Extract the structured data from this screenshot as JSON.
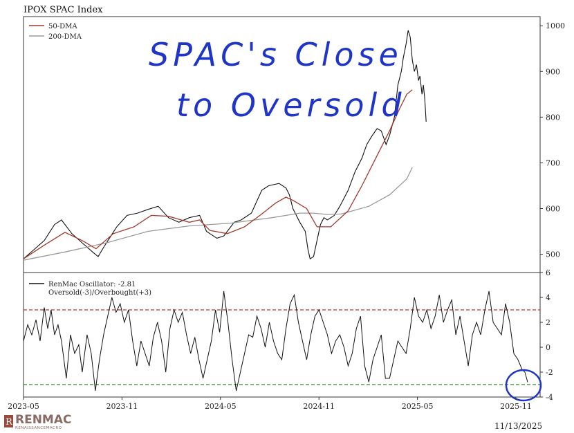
{
  "chart_data": [
    {
      "type": "line",
      "title": "IPOX SPAC Index",
      "ylim": [
        460,
        1020
      ],
      "yticks": [
        500,
        600,
        700,
        800,
        900,
        1000
      ],
      "legend_position": "top-left",
      "annotation": [
        "SPAC's Close",
        "to Oversold"
      ],
      "series": [
        {
          "name": "50-DMA",
          "color": "#a33a2c",
          "points": [
            [
              0,
              490
            ],
            [
              30,
              520
            ],
            [
              60,
              548
            ],
            [
              85,
              530
            ],
            [
              105,
              512
            ],
            [
              130,
              545
            ],
            [
              160,
              560
            ],
            [
              185,
              585
            ],
            [
              210,
              583
            ],
            [
              240,
              570
            ],
            [
              255,
              575
            ],
            [
              270,
              552
            ],
            [
              295,
              545
            ],
            [
              320,
              560
            ],
            [
              345,
              588
            ],
            [
              365,
              612
            ],
            [
              380,
              625
            ],
            [
              390,
              618
            ],
            [
              410,
              600
            ],
            [
              425,
              560
            ],
            [
              445,
              560
            ],
            [
              470,
              595
            ],
            [
              490,
              650
            ],
            [
              510,
              710
            ],
            [
              530,
              770
            ],
            [
              545,
              820
            ],
            [
              555,
              850
            ],
            [
              563,
              860
            ]
          ]
        },
        {
          "name": "200-DMA",
          "color": "#9a9a9a",
          "points": [
            [
              0,
              487
            ],
            [
              60,
              505
            ],
            [
              120,
              525
            ],
            [
              180,
              550
            ],
            [
              240,
              562
            ],
            [
              300,
              568
            ],
            [
              360,
              580
            ],
            [
              400,
              590
            ],
            [
              420,
              590
            ],
            [
              440,
              587
            ],
            [
              460,
              588
            ],
            [
              500,
              605
            ],
            [
              530,
              630
            ],
            [
              555,
              665
            ],
            [
              563,
              690
            ]
          ]
        },
        {
          "name": "IPOX SPAC Index",
          "color": "#111111",
          "points": [
            [
              0,
              490
            ],
            [
              15,
              510
            ],
            [
              30,
              530
            ],
            [
              45,
              565
            ],
            [
              55,
              575
            ],
            [
              70,
              545
            ],
            [
              85,
              525
            ],
            [
              100,
              505
            ],
            [
              108,
              495
            ],
            [
              118,
              520
            ],
            [
              135,
              560
            ],
            [
              150,
              585
            ],
            [
              165,
              590
            ],
            [
              180,
              598
            ],
            [
              195,
              605
            ],
            [
              210,
              580
            ],
            [
              225,
              570
            ],
            [
              240,
              580
            ],
            [
              255,
              585
            ],
            [
              265,
              550
            ],
            [
              280,
              535
            ],
            [
              290,
              540
            ],
            [
              305,
              570
            ],
            [
              315,
              575
            ],
            [
              330,
              590
            ],
            [
              345,
              640
            ],
            [
              355,
              650
            ],
            [
              370,
              655
            ],
            [
              380,
              645
            ],
            [
              385,
              630
            ],
            [
              390,
              600
            ],
            [
              400,
              570
            ],
            [
              408,
              550
            ],
            [
              412,
              510
            ],
            [
              415,
              490
            ],
            [
              420,
              495
            ],
            [
              425,
              530
            ],
            [
              430,
              565
            ],
            [
              435,
              580
            ],
            [
              440,
              575
            ],
            [
              450,
              585
            ],
            [
              458,
              605
            ],
            [
              470,
              640
            ],
            [
              480,
              680
            ],
            [
              490,
              710
            ],
            [
              497,
              740
            ],
            [
              505,
              760
            ],
            [
              512,
              775
            ],
            [
              518,
              770
            ],
            [
              525,
              740
            ],
            [
              530,
              760
            ],
            [
              537,
              800
            ],
            [
              542,
              870
            ],
            [
              547,
              900
            ],
            [
              550,
              930
            ],
            [
              554,
              960
            ],
            [
              557,
              990
            ],
            [
              560,
              975
            ],
            [
              563,
              925
            ],
            [
              566,
              900
            ],
            [
              569,
              915
            ],
            [
              572,
              880
            ],
            [
              574,
              890
            ],
            [
              577,
              850
            ],
            [
              579,
              870
            ],
            [
              581,
              840
            ],
            [
              583,
              790
            ]
          ]
        }
      ]
    },
    {
      "type": "line",
      "ylim": [
        -4,
        6
      ],
      "yticks": [
        -4,
        -2,
        0,
        2,
        4,
        6
      ],
      "xticks": [
        "2023-05",
        "2023-11",
        "2024-05",
        "2024-11",
        "2025-05",
        "2025-11"
      ],
      "x_range": [
        "2023-05",
        "2025-11"
      ],
      "legend_position": "top-left",
      "reference_lines": [
        {
          "value": 3,
          "color": "#cc2a1e"
        },
        {
          "value": -3,
          "color": "#2a8a1e"
        }
      ],
      "legend": [
        "RenMac Oscillator: -2.81",
        "Oversold(-3)/Overbought(+3)"
      ],
      "series": [
        {
          "name": "RenMac Oscillator: -2.81",
          "color": "#111111",
          "points": [
            [
              0,
              0.5
            ],
            [
              6,
              1.8
            ],
            [
              12,
              1.0
            ],
            [
              18,
              2.2
            ],
            [
              24,
              0.5
            ],
            [
              30,
              3.2
            ],
            [
              35,
              1.5
            ],
            [
              40,
              3.0
            ],
            [
              45,
              1.0
            ],
            [
              50,
              1.8
            ],
            [
              55,
              0.5
            ],
            [
              62,
              -2.5
            ],
            [
              68,
              1.0
            ],
            [
              74,
              -0.5
            ],
            [
              80,
              0.2
            ],
            [
              85,
              -2.0
            ],
            [
              92,
              1.0
            ],
            [
              98,
              -0.5
            ],
            [
              104,
              -3.5
            ],
            [
              110,
              -1.0
            ],
            [
              116,
              1.0
            ],
            [
              122,
              2.5
            ],
            [
              128,
              4.0
            ],
            [
              134,
              2.8
            ],
            [
              140,
              3.5
            ],
            [
              146,
              2.0
            ],
            [
              152,
              3.0
            ],
            [
              158,
              0.5
            ],
            [
              164,
              -1.5
            ],
            [
              170,
              0.5
            ],
            [
              176,
              -0.5
            ],
            [
              182,
              -1.5
            ],
            [
              188,
              0.8
            ],
            [
              194,
              2.0
            ],
            [
              200,
              0.5
            ],
            [
              206,
              -2.0
            ],
            [
              212,
              1.5
            ],
            [
              218,
              3.0
            ],
            [
              224,
              2.0
            ],
            [
              230,
              2.8
            ],
            [
              236,
              1.0
            ],
            [
              242,
              -0.5
            ],
            [
              248,
              0.8
            ],
            [
              254,
              -1.0
            ],
            [
              260,
              -2.5
            ],
            [
              266,
              -1.0
            ],
            [
              272,
              0.5
            ],
            [
              278,
              3.0
            ],
            [
              284,
              1.2
            ],
            [
              290,
              4.5
            ],
            [
              296,
              2.0
            ],
            [
              302,
              -1.0
            ],
            [
              308,
              -3.5
            ],
            [
              314,
              -2.0
            ],
            [
              320,
              -0.5
            ],
            [
              326,
              1.0
            ],
            [
              332,
              0.8
            ],
            [
              338,
              2.5
            ],
            [
              344,
              1.5
            ],
            [
              350,
              0.0
            ],
            [
              356,
              2.0
            ],
            [
              362,
              0.5
            ],
            [
              368,
              -0.5
            ],
            [
              374,
              -1.0
            ],
            [
              380,
              1.5
            ],
            [
              386,
              3.5
            ],
            [
              392,
              4.2
            ],
            [
              398,
              2.0
            ],
            [
              404,
              0.5
            ],
            [
              410,
              -1.0
            ],
            [
              416,
              1.0
            ],
            [
              422,
              2.5
            ],
            [
              428,
              3.0
            ],
            [
              434,
              2.0
            ],
            [
              440,
              1.0
            ],
            [
              446,
              -0.5
            ],
            [
              452,
              0.5
            ],
            [
              458,
              1.0
            ],
            [
              464,
              0.0
            ],
            [
              470,
              -1.5
            ],
            [
              476,
              -0.5
            ],
            [
              482,
              1.5
            ],
            [
              488,
              2.5
            ],
            [
              494,
              -1.5
            ],
            [
              500,
              -2.8
            ],
            [
              506,
              -1.0
            ],
            [
              512,
              0.0
            ],
            [
              518,
              1.0
            ],
            [
              524,
              -2.5
            ],
            [
              530,
              -2.5
            ],
            [
              536,
              -1.0
            ],
            [
              542,
              0.5
            ],
            [
              548,
              0.0
            ],
            [
              554,
              -0.5
            ],
            [
              560,
              1.5
            ],
            [
              566,
              4.0
            ],
            [
              572,
              2.5
            ],
            [
              578,
              2.0
            ],
            [
              584,
              3.0
            ],
            [
              590,
              1.5
            ],
            [
              596,
              2.5
            ],
            [
              602,
              4.2
            ],
            [
              608,
              2.0
            ],
            [
              614,
              3.0
            ],
            [
              620,
              3.8
            ],
            [
              626,
              1.0
            ],
            [
              632,
              2.5
            ],
            [
              638,
              0.5
            ],
            [
              644,
              -1.5
            ],
            [
              650,
              1.0
            ],
            [
              656,
              2.0
            ],
            [
              662,
              1.0
            ],
            [
              668,
              3.0
            ],
            [
              674,
              4.5
            ],
            [
              680,
              2.0
            ],
            [
              686,
              1.5
            ],
            [
              692,
              1.0
            ],
            [
              698,
              3.5
            ],
            [
              704,
              2.0
            ],
            [
              710,
              -0.5
            ],
            [
              716,
              -1.0
            ],
            [
              722,
              -1.8
            ],
            [
              726,
              -2.0
            ],
            [
              730,
              -2.81
            ]
          ]
        }
      ]
    }
  ],
  "footer": {
    "date": "11/13/2025",
    "logo": "RENMAC",
    "logo_sub": "RENAISSANCEMACRO"
  }
}
